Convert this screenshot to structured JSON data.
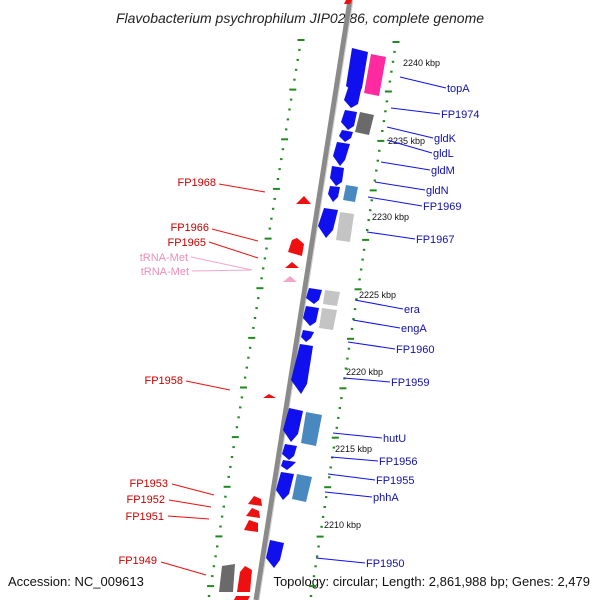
{
  "title": "Flavobacterium psychrophilum JIP02/86, complete genome",
  "footer": {
    "accession": "Accession: NC_009613",
    "topology": "Topology: circular; Length: 2,861,988 bp; Genes: 2,479"
  },
  "colors": {
    "backbone": "#8a8a8a",
    "tick": "#1f8a1f",
    "forward_gene": "#1010ee",
    "reverse_gene": "#ee1010",
    "trna": "#f4a6c8",
    "label_forward": "#1010aa",
    "label_reverse": "#cc0000",
    "label_trna": "#f08cb8",
    "feature_pink": "#ff2aa0",
    "feature_grey_dark": "#6a6a6a",
    "feature_grey_light": "#c4c4c4",
    "feature_steel": "#4a88c0"
  },
  "scale_labels": [
    {
      "text": "2240 kbp",
      "kbp": 2240
    },
    {
      "text": "2235 kbp",
      "kbp": 2235
    },
    {
      "text": "2230 kbp",
      "kbp": 2230
    },
    {
      "text": "2225 kbp",
      "kbp": 2225
    },
    {
      "text": "2220 kbp",
      "kbp": 2220
    },
    {
      "text": "2215 kbp",
      "kbp": 2215
    },
    {
      "text": "2210 kbp",
      "kbp": 2210
    }
  ],
  "forward_genes": [
    {
      "name": "topA"
    },
    {
      "name": "FP1974"
    },
    {
      "name": "gldK"
    },
    {
      "name": "gldL"
    },
    {
      "name": "gldM"
    },
    {
      "name": "gldN"
    },
    {
      "name": "FP1969"
    },
    {
      "name": "FP1967"
    },
    {
      "name": "era"
    },
    {
      "name": "engA"
    },
    {
      "name": "FP1960"
    },
    {
      "name": "FP1959"
    },
    {
      "name": "hutU"
    },
    {
      "name": "FP1956"
    },
    {
      "name": "FP1955"
    },
    {
      "name": "phhA"
    },
    {
      "name": "FP1950"
    }
  ],
  "reverse_genes": [
    {
      "name": "FP1968"
    },
    {
      "name": "FP1966"
    },
    {
      "name": "FP1965"
    },
    {
      "name": "tRNA-Met"
    },
    {
      "name": "tRNA-Met"
    },
    {
      "name": "FP1958"
    },
    {
      "name": "FP1953"
    },
    {
      "name": "FP1952"
    },
    {
      "name": "FP1951"
    },
    {
      "name": "FP1949"
    }
  ]
}
